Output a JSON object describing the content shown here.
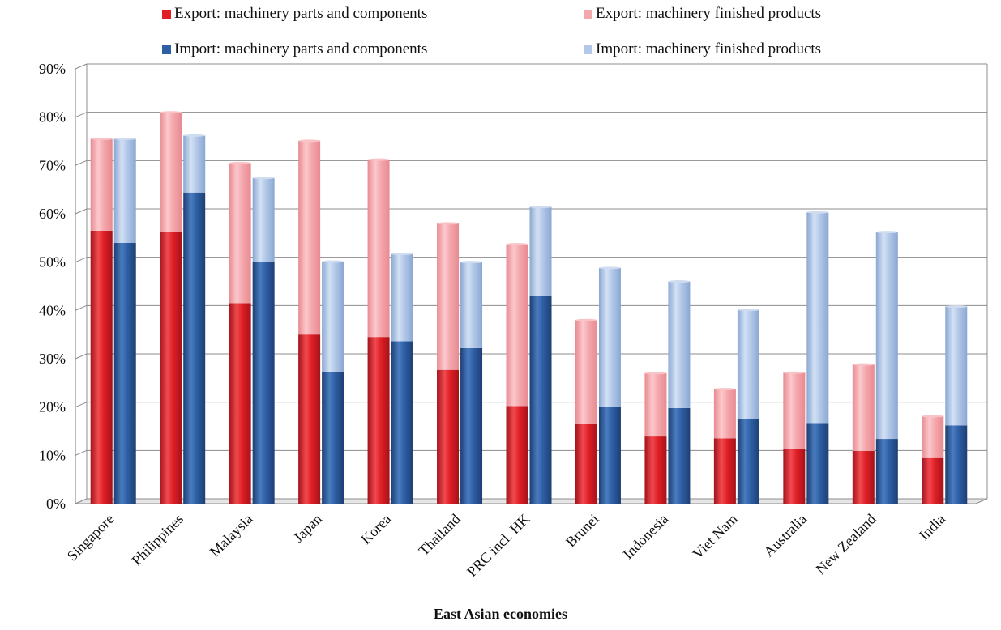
{
  "chart_data": {
    "type": "bar",
    "stacked": true,
    "title": "",
    "xlabel": "East Asian economies",
    "ylabel": "",
    "ylim": [
      0,
      90
    ],
    "y_ticks": [
      "0%",
      "10%",
      "20%",
      "30%",
      "40%",
      "50%",
      "60%",
      "70%",
      "80%",
      "90%"
    ],
    "grid": true,
    "legend_position": "top",
    "categories": [
      "Singapore",
      "Philippines",
      "Malaysia",
      "Japan",
      "Korea",
      "Thailand",
      "PRC incl. HK",
      "Brunei",
      "Indonesia",
      "Viet Nam",
      "Australia",
      "New Zealand",
      "India"
    ],
    "series": [
      {
        "name": "Export: machinery parts and components",
        "stack": "export",
        "color": "#e01f26",
        "values": [
          56.5,
          56.2,
          41.5,
          35.0,
          34.5,
          27.7,
          20.2,
          16.5,
          13.9,
          13.5,
          11.3,
          10.9,
          9.6
        ]
      },
      {
        "name": "Export: machinery finished products",
        "stack": "export",
        "color": "#f4a8ad",
        "values": [
          19.0,
          24.8,
          29.0,
          40.1,
          36.7,
          30.3,
          33.5,
          21.5,
          13.1,
          10.2,
          15.8,
          17.9,
          8.5
        ]
      },
      {
        "name": "Import: machinery parts and components",
        "stack": "import",
        "color": "#2e5fa5",
        "values": [
          54.0,
          64.4,
          50.0,
          27.3,
          33.6,
          32.2,
          43.0,
          20.0,
          19.8,
          17.5,
          16.7,
          13.4,
          16.2
        ]
      },
      {
        "name": "Import: machinery finished products",
        "stack": "import",
        "color": "#b3c8e8",
        "values": [
          21.5,
          11.8,
          17.4,
          22.8,
          18.1,
          17.8,
          18.4,
          28.8,
          26.2,
          22.6,
          43.6,
          42.8,
          24.6
        ]
      }
    ]
  }
}
